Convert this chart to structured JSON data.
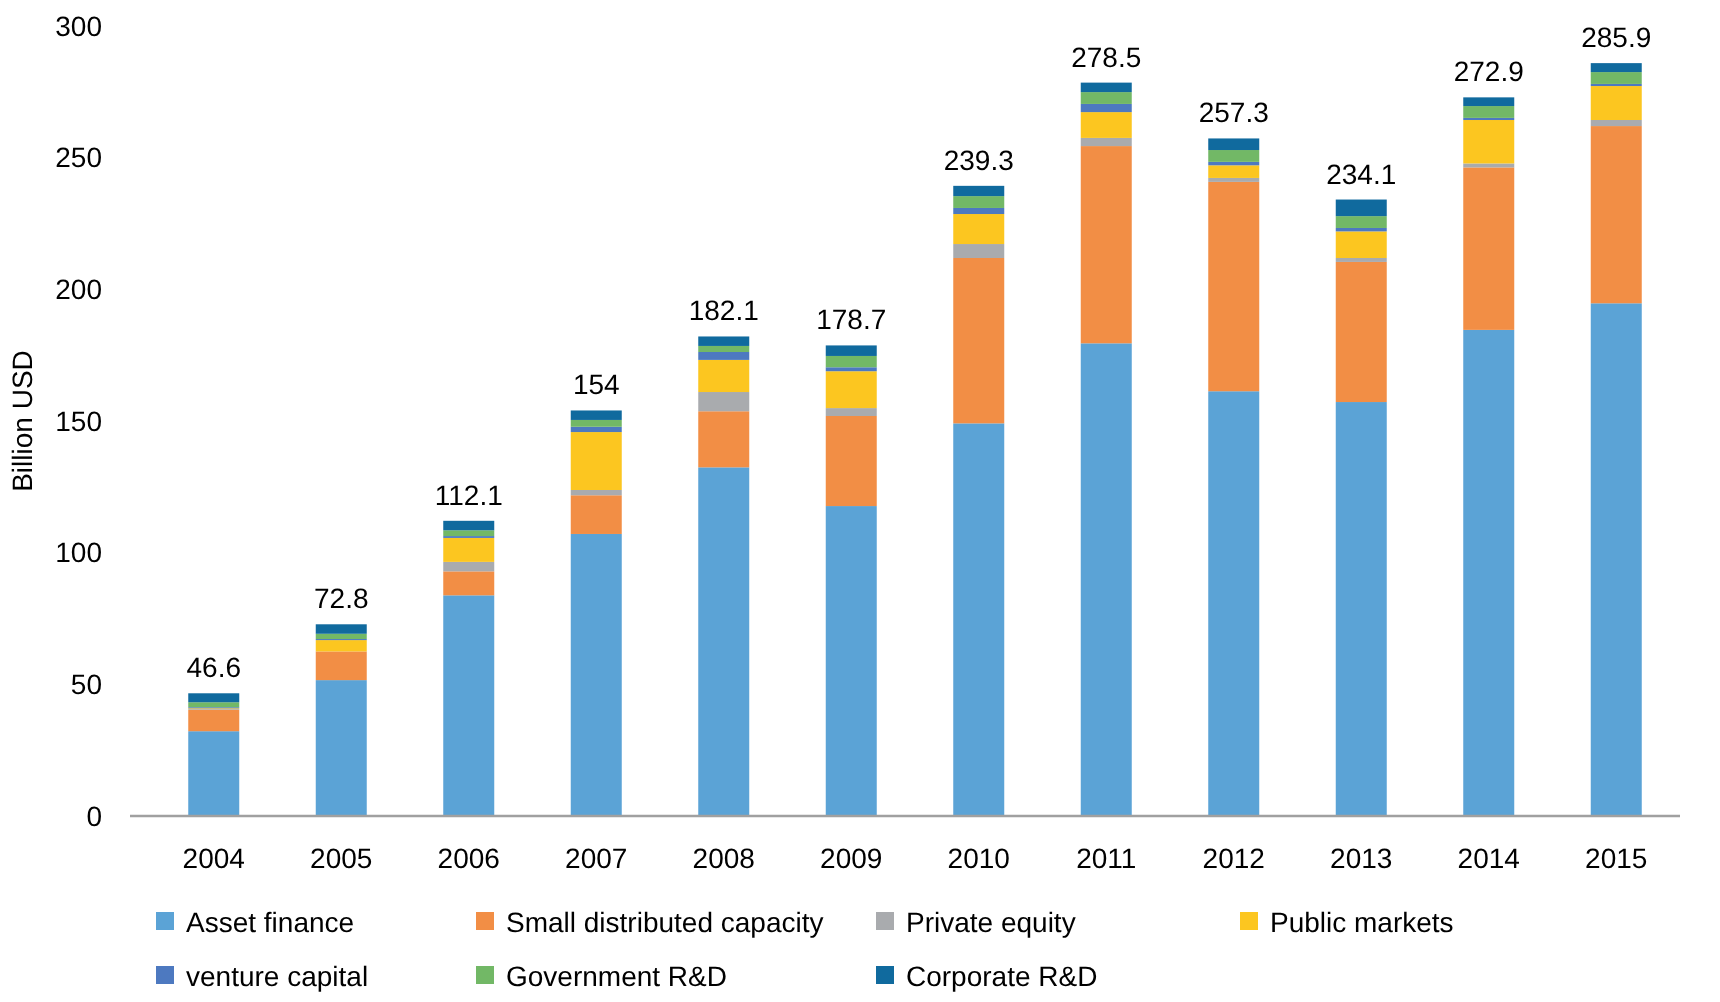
{
  "chart_data": {
    "type": "bar",
    "stacked": true,
    "ylabel": "Billion USD",
    "categories": [
      "2004",
      "2005",
      "2006",
      "2007",
      "2008",
      "2009",
      "2010",
      "2011",
      "2012",
      "2013",
      "2014",
      "2015"
    ],
    "ylim": [
      0,
      300
    ],
    "yticks": [
      0,
      50,
      100,
      150,
      200,
      250,
      300
    ],
    "grid": false,
    "legend": "bottom",
    "series": [
      {
        "name": "Asset finance",
        "color": "#5ba3d6",
        "values": [
          32.2,
          51.6,
          83.8,
          107.1,
          132.4,
          117.7,
          149.1,
          179.5,
          161.3,
          157.2,
          184.6,
          194.7
        ]
      },
      {
        "name": "Small distributed capacity",
        "color": "#f28e45",
        "values": [
          8.1,
          10.9,
          9.1,
          14.7,
          21.3,
          34.2,
          62.8,
          74.9,
          79.5,
          53.2,
          61.7,
          67.3
        ]
      },
      {
        "name": "Private equity",
        "color": "#a9abae",
        "values": [
          0.3,
          null,
          3.6,
          2.0,
          7.3,
          3.0,
          5.3,
          3.1,
          1.5,
          1.5,
          1.5,
          2.3
        ]
      },
      {
        "name": "Public markets",
        "color": "#fcc620",
        "values": [
          0.3,
          4.3,
          9.1,
          22.0,
          12.2,
          14.0,
          11.4,
          9.8,
          4.8,
          10.1,
          16.5,
          12.9
        ]
      },
      {
        "name": "venture capital",
        "color": "#4d79c0",
        "values": [
          0.4,
          0.4,
          0.7,
          2.0,
          3.0,
          1.5,
          2.3,
          3.1,
          1.3,
          1.3,
          0.8,
          0.8
        ]
      },
      {
        "name": "Government R&D",
        "color": "#72b866",
        "values": [
          1.9,
          2.0,
          2.2,
          2.6,
          2.3,
          4.3,
          4.5,
          4.5,
          4.5,
          4.5,
          4.5,
          4.5
        ]
      },
      {
        "name": "Corporate R&D",
        "color": "#106a9e",
        "values": [
          3.4,
          3.6,
          3.6,
          3.6,
          3.6,
          4.0,
          3.9,
          3.6,
          4.4,
          6.3,
          3.3,
          3.4
        ]
      }
    ],
    "totals": [
      "46.6",
      "72.8",
      "112.1",
      "154",
      "182.1",
      "178.7",
      "239.3",
      "278.5",
      "257.3",
      "234.1",
      "272.9",
      "285.9"
    ]
  }
}
